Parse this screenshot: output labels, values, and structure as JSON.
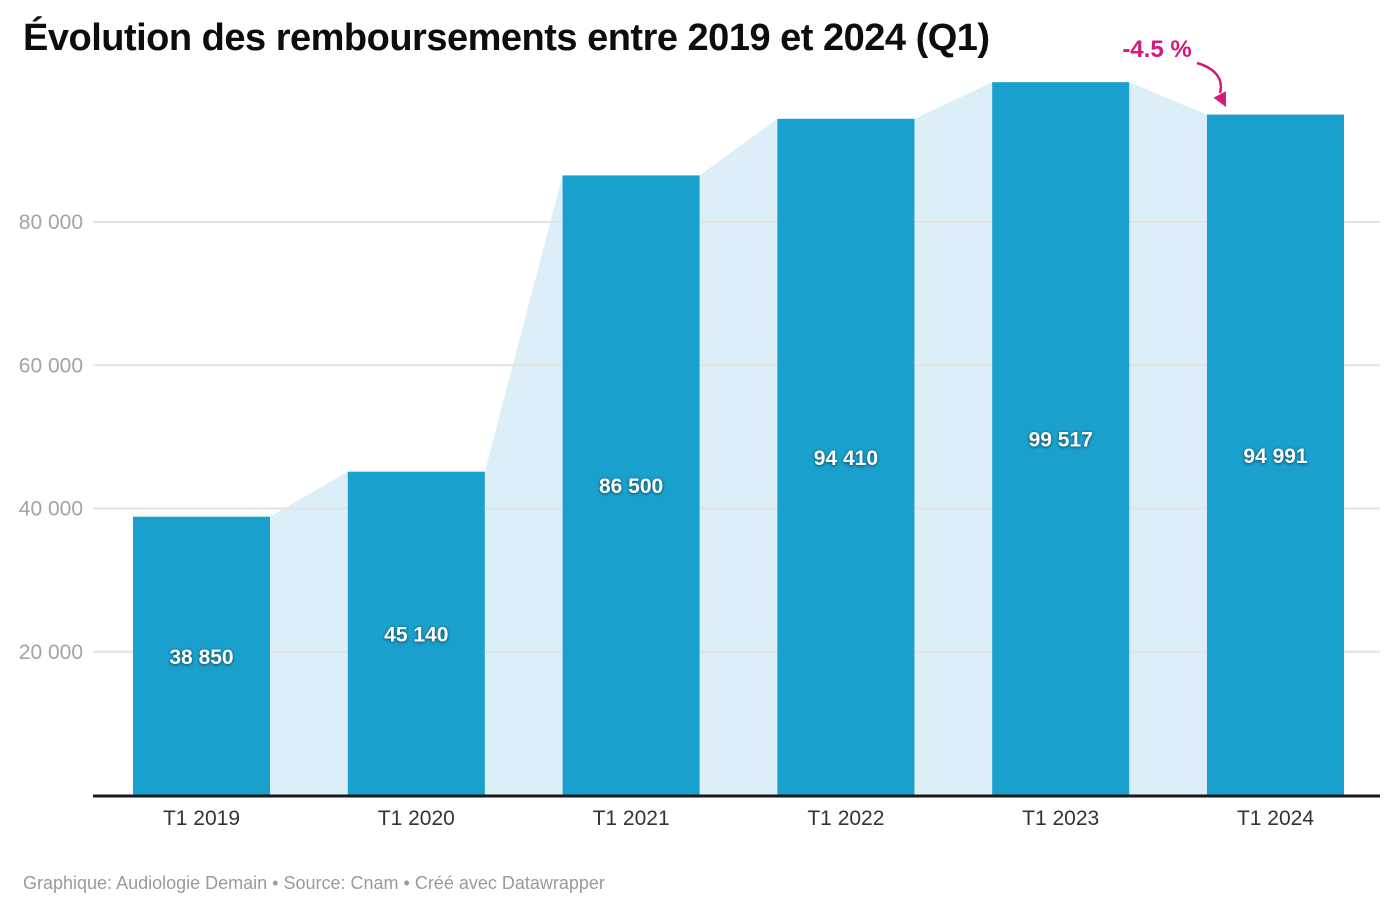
{
  "footer": "Graphique: Audiologie Demain • Source: Cnam • Créé avec Datawrapper",
  "chart_data": {
    "type": "bar",
    "title": "Évolution des remboursements entre 2019 et 2024 (Q1)",
    "xlabel": "",
    "ylabel": "",
    "categories": [
      "T1 2019",
      "T1 2020",
      "T1 2021",
      "T1 2022",
      "T1 2023",
      "T1 2024"
    ],
    "values": [
      38850,
      45140,
      86500,
      94410,
      99517,
      94991
    ],
    "value_labels": [
      "38 850",
      "45 140",
      "86 500",
      "94 410",
      "99 517",
      "94 991"
    ],
    "ylim": [
      0,
      100000
    ],
    "yticks": [
      {
        "value": 20000,
        "label": "20 000"
      },
      {
        "value": 40000,
        "label": "40 000"
      },
      {
        "value": 60000,
        "label": "60 000"
      },
      {
        "value": 80000,
        "label": "80 000"
      }
    ],
    "grid": true,
    "legend": "none",
    "area_silhouette": true,
    "annotation": {
      "text": "-4.5 %",
      "target_category": "T1 2024"
    },
    "colors": {
      "bar": "#1aa0cc",
      "area": "#dceef7",
      "gridline": "#e3e3e3",
      "axis": "#191919",
      "ytick_label": "#a3a3a3",
      "xtick_label": "#333333",
      "value_label": "#ffffff",
      "title": "#0d0d0d",
      "footer": "#9a9a9a",
      "annotation": "#d4197d"
    }
  }
}
